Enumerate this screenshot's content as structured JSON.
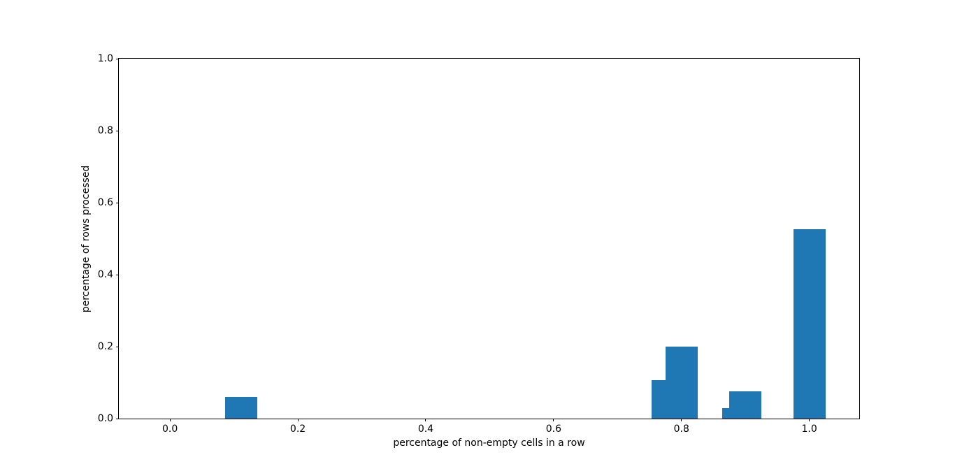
{
  "chart_data": {
    "type": "bar",
    "title": "",
    "xlabel": "percentage of non-empty cells in a row",
    "ylabel": "percentage of rows processed",
    "bar_color": "#1f77b4",
    "bar_width": 0.05,
    "x": [
      0.111,
      0.778,
      0.8,
      0.889,
      0.9,
      1.0
    ],
    "values": [
      0.06,
      0.107,
      0.2,
      0.03,
      0.076,
      0.527
    ],
    "xlim": [
      -0.08,
      1.078
    ],
    "ylim": [
      0,
      1
    ],
    "xticks": {
      "values": [
        0.0,
        0.2,
        0.4,
        0.6,
        0.8,
        1.0
      ],
      "labels": [
        "0.0",
        "0.2",
        "0.4",
        "0.6",
        "0.8",
        "1.0"
      ]
    },
    "yticks": {
      "values": [
        0.0,
        0.2,
        0.4,
        0.6,
        0.8,
        1.0
      ],
      "labels": [
        "0.0",
        "0.2",
        "0.4",
        "0.6",
        "0.8",
        "1.0"
      ]
    },
    "grid": false,
    "legend": null,
    "background": "#ffffff",
    "spine_color": "#000000"
  }
}
